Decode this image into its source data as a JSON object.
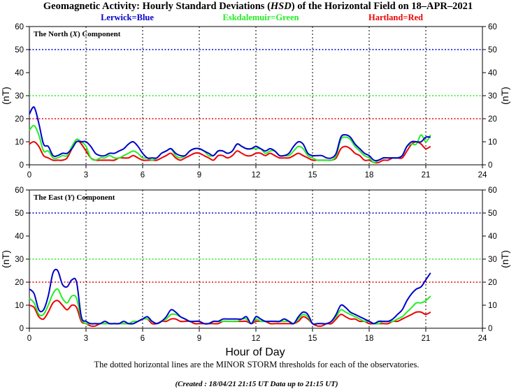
{
  "title_parts": {
    "a": "Geomagnetic Activity: Hourly Standard Deviations (",
    "b": "HSD",
    "c": ") of the Horizontal Field on 18–APR–2021"
  },
  "legend": {
    "lerwick": "Lerwick=Blue",
    "eskdalemuir": "Eskdalemuir=Green",
    "hartland": "Hartland=Red"
  },
  "colors": {
    "lerwick": "#0000cc",
    "eskdalemuir": "#22ee22",
    "hartland": "#ee0000"
  },
  "x_label": "Hour of Day",
  "footnote": "The dotted horizontal lines are the MINOR STORM thresholds for each of the observatories.",
  "created": "(Created : 18/04/21 21:15 UT  Data up to 21:15 UT)",
  "chart_data": [
    {
      "type": "line",
      "panel": "north",
      "title_parts": {
        "a": "The North (",
        "b": "X",
        "c": ") Component"
      },
      "ylabel": "(nT)",
      "ylim": [
        0,
        60
      ],
      "yticks": [
        "0",
        "10",
        "20",
        "30",
        "40",
        "50",
        "60"
      ],
      "xlim": [
        0,
        24
      ],
      "xticks": [
        "0",
        "3",
        "6",
        "9",
        "12",
        "15",
        "18",
        "21",
        "24"
      ],
      "thresholds": {
        "lerwick": 50,
        "eskdalemuir": 30,
        "hartland": 20
      },
      "series": [
        {
          "name": "Lerwick",
          "key": "lerwick",
          "x": [
            0,
            0.25,
            0.5,
            0.75,
            1,
            1.25,
            1.5,
            1.75,
            2,
            2.25,
            2.5,
            2.75,
            3,
            3.25,
            3.5,
            3.75,
            4,
            4.25,
            4.5,
            4.75,
            5,
            5.25,
            5.5,
            5.75,
            6,
            6.25,
            6.5,
            6.75,
            7,
            7.25,
            7.5,
            7.75,
            8,
            8.25,
            8.5,
            8.75,
            9,
            9.25,
            9.5,
            9.75,
            10,
            10.25,
            10.5,
            10.75,
            11,
            11.25,
            11.5,
            11.75,
            12,
            12.25,
            12.5,
            12.75,
            13,
            13.25,
            13.5,
            13.75,
            14,
            14.25,
            14.5,
            14.75,
            15,
            15.25,
            15.5,
            15.75,
            16,
            16.25,
            16.5,
            16.75,
            17,
            17.25,
            17.5,
            17.75,
            18,
            18.25,
            18.5,
            18.75,
            19,
            19.25,
            19.5,
            19.75,
            20,
            20.25,
            20.5,
            20.75,
            21,
            21.25
          ],
          "values": [
            22,
            25,
            18,
            9,
            8,
            4,
            4,
            5,
            5,
            7,
            10,
            10,
            10,
            8,
            5,
            4,
            4,
            5,
            5,
            6,
            7,
            9,
            10,
            8,
            5,
            3,
            3,
            3,
            5,
            6,
            7,
            5,
            4,
            4,
            6,
            7,
            7,
            6,
            5,
            4,
            6,
            6,
            5,
            6,
            9,
            8,
            7,
            7,
            8,
            7,
            6,
            7,
            6,
            4,
            4,
            5,
            8,
            10,
            9,
            5,
            4,
            4,
            4,
            3,
            3,
            5,
            12,
            13,
            12,
            9,
            7,
            5,
            4,
            2,
            2,
            3,
            3,
            3,
            3,
            4,
            8,
            10,
            10,
            10,
            12,
            12
          ]
        },
        {
          "name": "Eskdalemuir",
          "key": "eskdalemuir",
          "x": [
            0,
            0.25,
            0.5,
            0.75,
            1,
            1.25,
            1.5,
            1.75,
            2,
            2.25,
            2.5,
            2.75,
            3,
            3.25,
            3.5,
            3.75,
            4,
            4.25,
            4.5,
            4.75,
            5,
            5.25,
            5.5,
            5.75,
            6,
            6.25,
            6.5,
            6.75,
            7,
            7.25,
            7.5,
            7.75,
            8,
            8.25,
            8.5,
            8.75,
            9,
            9.25,
            9.5,
            9.75,
            10,
            10.25,
            10.5,
            10.75,
            11,
            11.25,
            11.5,
            11.75,
            12,
            12.25,
            12.5,
            12.75,
            13,
            13.25,
            13.5,
            13.75,
            14,
            14.25,
            14.5,
            14.75,
            15,
            15.25,
            15.5,
            15.75,
            16,
            16.25,
            16.5,
            16.75,
            17,
            17.25,
            17.5,
            17.75,
            18,
            18.25,
            18.5,
            18.75,
            19,
            19.25,
            19.5,
            19.75,
            20,
            20.25,
            20.5,
            20.75,
            21,
            21.25
          ],
          "values": [
            15,
            17,
            13,
            6,
            6,
            3,
            3,
            4,
            4,
            8,
            11,
            10,
            8,
            3,
            2,
            3,
            3,
            4,
            3,
            3,
            4,
            5,
            6,
            5,
            3,
            3,
            2,
            3,
            5,
            6,
            7,
            4,
            3,
            4,
            6,
            7,
            7,
            6,
            4,
            4,
            6,
            6,
            5,
            6,
            9,
            8,
            7,
            7,
            7,
            7,
            5,
            6,
            6,
            4,
            4,
            4,
            6,
            8,
            7,
            4,
            3,
            2,
            2,
            2,
            2,
            4,
            11,
            12,
            11,
            8,
            6,
            4,
            3,
            1,
            2,
            3,
            3,
            3,
            3,
            4,
            8,
            9,
            9,
            13,
            10,
            13
          ]
        },
        {
          "name": "Hartland",
          "key": "hartland",
          "x": [
            0,
            0.25,
            0.5,
            0.75,
            1,
            1.25,
            1.5,
            1.75,
            2,
            2.25,
            2.5,
            2.75,
            3,
            3.25,
            3.5,
            3.75,
            4,
            4.25,
            4.5,
            4.75,
            5,
            5.25,
            5.5,
            5.75,
            6,
            6.25,
            6.5,
            6.75,
            7,
            7.25,
            7.5,
            7.75,
            8,
            8.25,
            8.5,
            8.75,
            9,
            9.25,
            9.5,
            9.75,
            10,
            10.25,
            10.5,
            10.75,
            11,
            11.25,
            11.5,
            11.75,
            12,
            12.25,
            12.5,
            12.75,
            13,
            13.25,
            13.5,
            13.75,
            14,
            14.25,
            14.5,
            14.75,
            15,
            15.25,
            15.5,
            15.75,
            16,
            16.25,
            16.5,
            16.75,
            17,
            17.25,
            17.5,
            17.75,
            18,
            18.25,
            18.5,
            18.75,
            19,
            19.25,
            19.5,
            19.75,
            20,
            20.25,
            20.5,
            20.75,
            21,
            21.25
          ],
          "values": [
            9,
            10,
            8,
            4,
            3,
            2,
            2,
            2,
            3,
            7,
            11,
            9,
            6,
            3,
            2,
            2,
            2,
            2,
            2,
            3,
            3,
            3,
            4,
            3,
            2,
            2,
            2,
            2,
            3,
            4,
            5,
            3,
            2,
            3,
            4,
            5,
            5,
            4,
            3,
            2,
            4,
            4,
            3,
            4,
            6,
            5,
            4,
            4,
            5,
            5,
            4,
            5,
            4,
            3,
            3,
            3,
            4,
            5,
            4,
            3,
            2,
            2,
            2,
            2,
            2,
            3,
            7,
            8,
            7,
            5,
            4,
            2,
            2,
            1,
            1,
            2,
            2,
            3,
            3,
            3,
            6,
            9,
            10,
            9,
            7,
            8
          ]
        }
      ]
    },
    {
      "type": "line",
      "panel": "east",
      "title_parts": {
        "a": "The East (",
        "b": "Y",
        "c": ") Component"
      },
      "ylabel": "(nT)",
      "ylim": [
        0,
        60
      ],
      "yticks": [
        "0",
        "10",
        "20",
        "30",
        "40",
        "50",
        "60"
      ],
      "xlim": [
        0,
        24
      ],
      "xticks": [
        "0",
        "3",
        "6",
        "9",
        "12",
        "15",
        "18",
        "21",
        "24"
      ],
      "thresholds": {
        "lerwick": 50,
        "eskdalemuir": 30,
        "hartland": 20
      },
      "series": [
        {
          "name": "Lerwick",
          "key": "lerwick",
          "x": [
            0,
            0.25,
            0.5,
            0.75,
            1,
            1.25,
            1.5,
            1.75,
            2,
            2.25,
            2.5,
            2.75,
            3,
            3.25,
            3.5,
            3.75,
            4,
            4.25,
            4.5,
            4.75,
            5,
            5.25,
            5.5,
            5.75,
            6,
            6.25,
            6.5,
            6.75,
            7,
            7.25,
            7.5,
            7.75,
            8,
            8.25,
            8.5,
            8.75,
            9,
            9.25,
            9.5,
            9.75,
            10,
            10.25,
            10.5,
            10.75,
            11,
            11.25,
            11.5,
            11.75,
            12,
            12.25,
            12.5,
            12.75,
            13,
            13.25,
            13.5,
            13.75,
            14,
            14.25,
            14.5,
            14.75,
            15,
            15.25,
            15.5,
            15.75,
            16,
            16.25,
            16.5,
            16.75,
            17,
            17.25,
            17.5,
            17.75,
            18,
            18.25,
            18.5,
            18.75,
            19,
            19.25,
            19.5,
            19.75,
            20,
            20.25,
            20.5,
            20.75,
            21,
            21.25
          ],
          "values": [
            17,
            15,
            8,
            8,
            14,
            24,
            25,
            19,
            18,
            21,
            20,
            5,
            3,
            2,
            2,
            2,
            3,
            2,
            2,
            2,
            3,
            2,
            2,
            3,
            4,
            5,
            3,
            2,
            3,
            5,
            8,
            7,
            5,
            4,
            3,
            3,
            3,
            2,
            2,
            3,
            3,
            4,
            4,
            4,
            4,
            4,
            5,
            2,
            5,
            4,
            3,
            3,
            3,
            3,
            4,
            3,
            2,
            5,
            7,
            6,
            2,
            2,
            2,
            2,
            3,
            6,
            10,
            9,
            7,
            6,
            5,
            4,
            3,
            2,
            3,
            3,
            3,
            4,
            6,
            8,
            12,
            15,
            17,
            18,
            21,
            24
          ]
        },
        {
          "name": "Eskdalemuir",
          "key": "eskdalemuir",
          "x": [
            0,
            0.25,
            0.5,
            0.75,
            1,
            1.25,
            1.5,
            1.75,
            2,
            2.25,
            2.5,
            2.75,
            3,
            3.25,
            3.5,
            3.75,
            4,
            4.25,
            4.5,
            4.75,
            5,
            5.25,
            5.5,
            5.75,
            6,
            6.25,
            6.5,
            6.75,
            7,
            7.25,
            7.5,
            7.75,
            8,
            8.25,
            8.5,
            8.75,
            9,
            9.25,
            9.5,
            9.75,
            10,
            10.25,
            10.5,
            10.75,
            11,
            11.25,
            11.5,
            11.75,
            12,
            12.25,
            12.5,
            12.75,
            13,
            13.25,
            13.5,
            13.75,
            14,
            14.25,
            14.5,
            14.75,
            15,
            15.25,
            15.5,
            15.75,
            16,
            16.25,
            16.5,
            16.75,
            17,
            17.25,
            17.5,
            17.75,
            18,
            18.25,
            18.5,
            18.75,
            19,
            19.25,
            19.5,
            19.75,
            20,
            20.25,
            20.5,
            20.75,
            21,
            21.25
          ],
          "values": [
            13,
            11,
            6,
            6,
            10,
            15,
            17,
            13,
            11,
            14,
            13,
            4,
            2,
            2,
            2,
            2,
            2,
            2,
            2,
            2,
            2,
            2,
            3,
            3,
            4,
            4,
            3,
            2,
            3,
            4,
            6,
            6,
            5,
            4,
            3,
            3,
            3,
            2,
            2,
            3,
            3,
            3,
            3,
            3,
            3,
            4,
            4,
            2,
            4,
            3,
            3,
            3,
            3,
            3,
            3,
            3,
            2,
            4,
            6,
            5,
            2,
            2,
            2,
            2,
            3,
            5,
            8,
            7,
            6,
            5,
            4,
            3,
            3,
            2,
            2,
            3,
            3,
            3,
            4,
            5,
            7,
            9,
            11,
            11,
            12,
            14
          ]
        },
        {
          "name": "Hartland",
          "key": "hartland",
          "x": [
            0,
            0.25,
            0.5,
            0.75,
            1,
            1.25,
            1.5,
            1.75,
            2,
            2.25,
            2.5,
            2.75,
            3,
            3.25,
            3.5,
            3.75,
            4,
            4.25,
            4.5,
            4.75,
            5,
            5.25,
            5.5,
            5.75,
            6,
            6.25,
            6.5,
            6.75,
            7,
            7.25,
            7.5,
            7.75,
            8,
            8.25,
            8.5,
            8.75,
            9,
            9.25,
            9.5,
            9.75,
            10,
            10.25,
            10.5,
            10.75,
            11,
            11.25,
            11.5,
            11.75,
            12,
            12.25,
            12.5,
            12.75,
            13,
            13.25,
            13.5,
            13.75,
            14,
            14.25,
            14.5,
            14.75,
            15,
            15.25,
            15.5,
            15.75,
            16,
            16.25,
            16.5,
            16.75,
            17,
            17.25,
            17.5,
            17.75,
            18,
            18.25,
            18.5,
            18.75,
            19,
            19.25,
            19.5,
            19.75,
            20,
            20.25,
            20.5,
            20.75,
            21,
            21.25
          ],
          "values": [
            10,
            9,
            5,
            4,
            7,
            11,
            12,
            10,
            8,
            10,
            9,
            3,
            2,
            1,
            1,
            2,
            2,
            2,
            2,
            2,
            2,
            2,
            2,
            3,
            4,
            4,
            2,
            2,
            3,
            3,
            4,
            4,
            3,
            3,
            3,
            2,
            2,
            2,
            2,
            2,
            2,
            3,
            3,
            3,
            3,
            3,
            3,
            2,
            3,
            3,
            3,
            2,
            2,
            2,
            2,
            2,
            2,
            3,
            5,
            4,
            2,
            1,
            1,
            2,
            2,
            4,
            6,
            5,
            4,
            4,
            3,
            3,
            2,
            2,
            2,
            2,
            2,
            3,
            3,
            4,
            5,
            6,
            7,
            7,
            6,
            7
          ]
        }
      ]
    }
  ]
}
